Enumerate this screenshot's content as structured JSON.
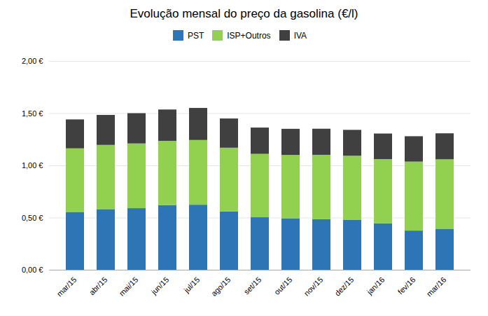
{
  "chart_data": {
    "type": "bar",
    "stacked": true,
    "title": "Evolução mensal do preço da gasolina (€/l)",
    "categories": [
      "mar/15",
      "abr/15",
      "mai/15",
      "jun/15",
      "jul/15",
      "ago/15",
      "set/15",
      "out/15",
      "nov/15",
      "dez/15",
      "jan/16",
      "fev/16",
      "mar/16"
    ],
    "series": [
      {
        "name": "PST",
        "color": "#2E75B6",
        "values": [
          0.554,
          0.581,
          0.59,
          0.62,
          0.623,
          0.558,
          0.503,
          0.49,
          0.484,
          0.48,
          0.445,
          0.375,
          0.393
        ]
      },
      {
        "name": "ISP+Outros",
        "color": "#92D050",
        "values": [
          0.609,
          0.615,
          0.62,
          0.615,
          0.62,
          0.611,
          0.607,
          0.61,
          0.617,
          0.612,
          0.615,
          0.661,
          0.665
        ]
      },
      {
        "name": "IVA",
        "color": "#404040",
        "values": [
          0.277,
          0.287,
          0.29,
          0.3,
          0.307,
          0.28,
          0.252,
          0.25,
          0.25,
          0.248,
          0.245,
          0.243,
          0.249
        ]
      }
    ],
    "ylim": [
      0.0,
      2.0
    ],
    "yticks": [
      {
        "value": 0.0,
        "label": "0,00 €"
      },
      {
        "value": 0.5,
        "label": "0,50 €"
      },
      {
        "value": 1.0,
        "label": "1,00 €"
      },
      {
        "value": 1.5,
        "label": "1,50 €"
      },
      {
        "value": 2.0,
        "label": "2,00 €"
      }
    ],
    "grid": true,
    "legend": "top"
  }
}
